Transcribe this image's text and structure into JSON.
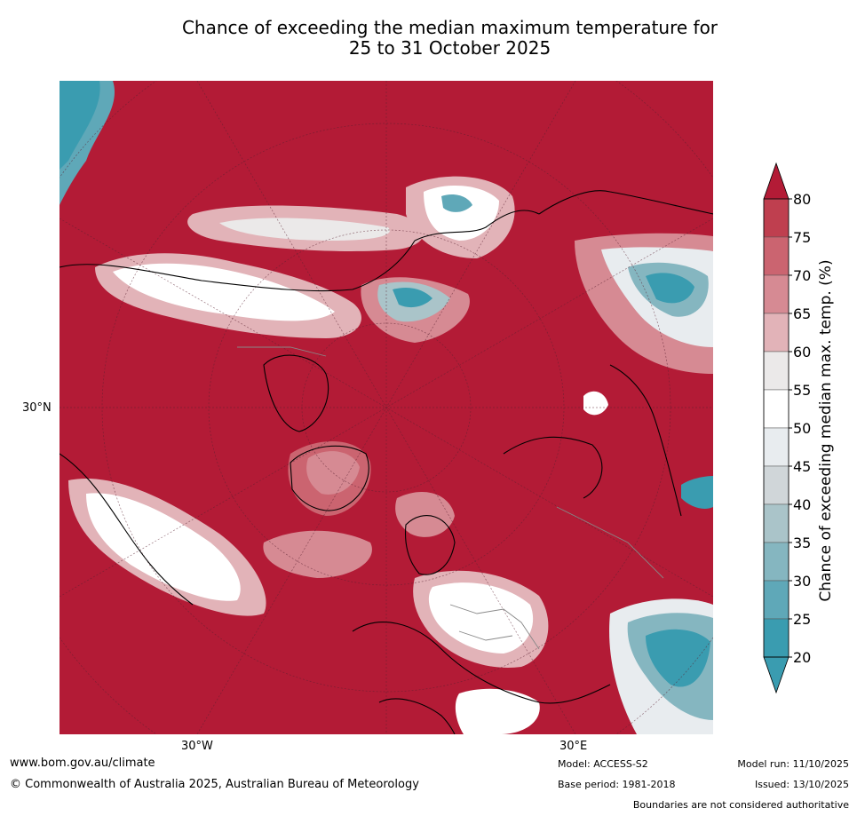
{
  "title": {
    "line1": "Chance of exceeding the median maximum temperature for",
    "line2": "25 to 31 October 2025"
  },
  "map": {
    "projection": "north-polar-stereographic",
    "lat_labels": [
      "30°N"
    ],
    "lon_labels": [
      "30°W",
      "30°E"
    ]
  },
  "colorbar": {
    "label": "Chance of exceeding median max. temp. (%)",
    "ticks": [
      "80",
      "75",
      "70",
      "65",
      "60",
      "55",
      "50",
      "45",
      "40",
      "35",
      "30",
      "25",
      "20"
    ],
    "colors": [
      "#b31b36",
      "#bf3f4f",
      "#cb6470",
      "#d68a93",
      "#e2b3b8",
      "#ebe9e9",
      "#ffffff",
      "#e8ecef",
      "#d0d6d9",
      "#aac4c9",
      "#85b6c0",
      "#5fa8b8",
      "#3a9cb0"
    ],
    "extend_max_color": "#b31b36",
    "extend_min_color": "#3a9cb0"
  },
  "footer": {
    "website": "www.bom.gov.au/climate",
    "copyright": "© Commonwealth of Australia 2025, Australian Bureau of Meteorology",
    "model": "Model: ACCESS-S2",
    "base_period": "Base period: 1981-2018",
    "model_run": "Model run: 11/10/2025",
    "issued": "Issued: 13/10/2025",
    "disclaimer": "Boundaries are not considered authoritative"
  }
}
